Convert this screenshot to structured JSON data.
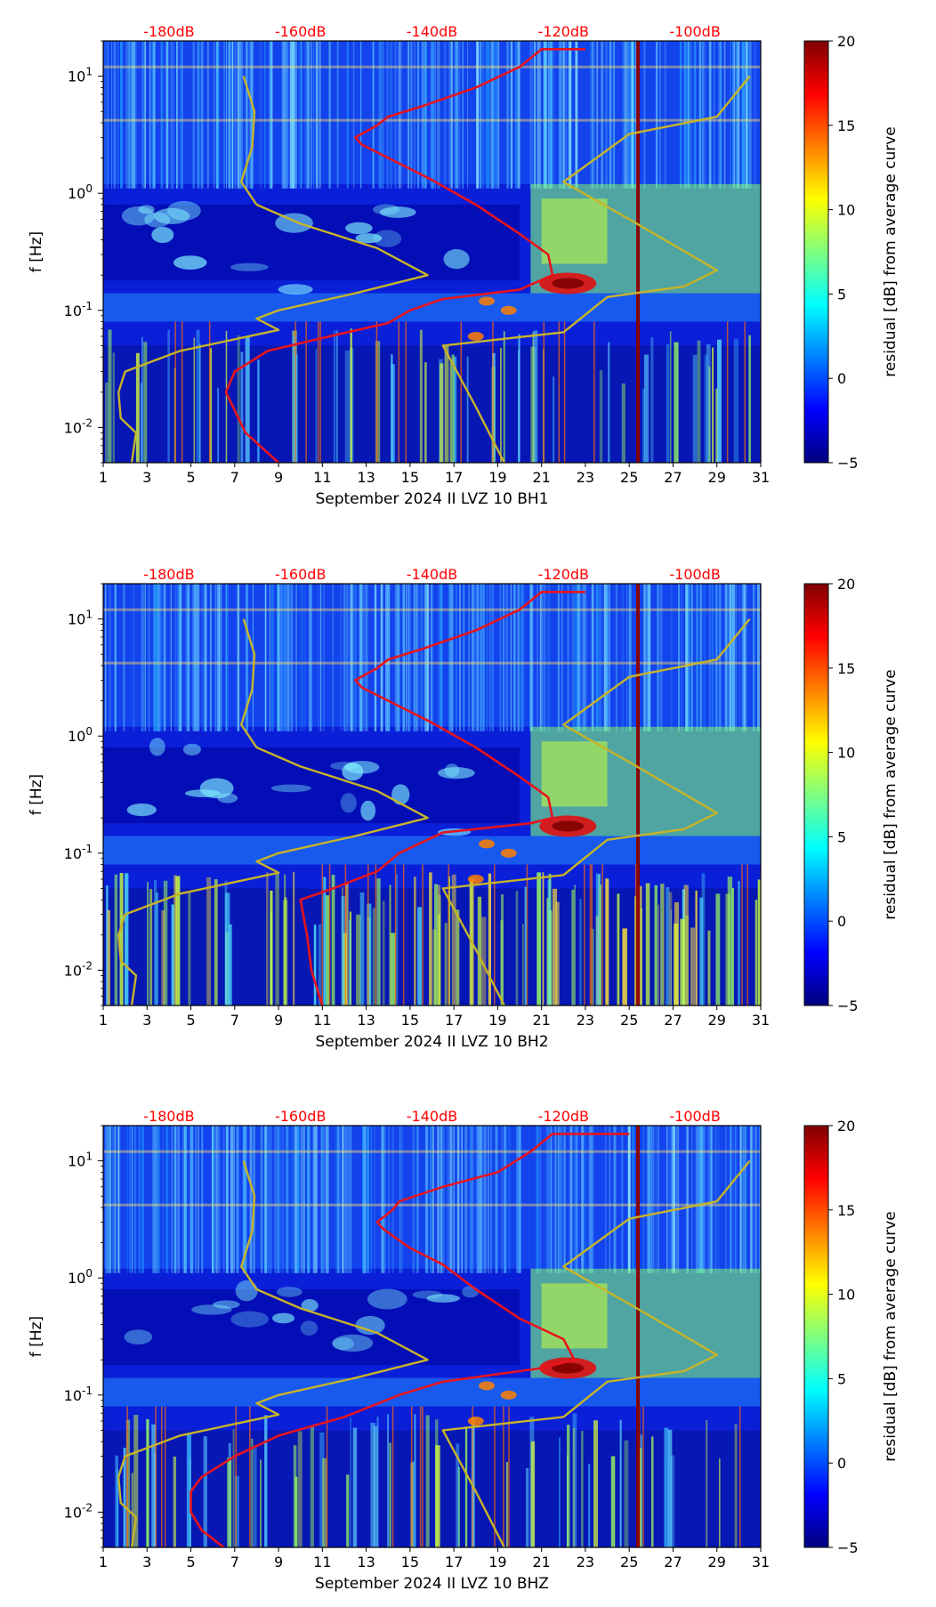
{
  "colormap": {
    "name": "jet",
    "stops": [
      "#00007f",
      "#0000ff",
      "#007fff",
      "#00ffff",
      "#7fff7f",
      "#ffff00",
      "#ff7f00",
      "#ff0000",
      "#7f0000"
    ]
  },
  "colors": {
    "psd_line": "#e8141c",
    "noise_model_line": "#c8b428",
    "db_label": "#ff0000"
  },
  "chart_data": [
    {
      "type": "heatmap",
      "xlabel": "September 2024 II LVZ 10 BH1",
      "ylabel": "f [Hz]",
      "colorbar_label": "residual [dB] from average curve",
      "colorbar_ticks": [
        "20",
        "15",
        "10",
        "5",
        "0",
        "−5"
      ],
      "colorbar_values": [
        20,
        15,
        10,
        5,
        0,
        -5
      ],
      "crange": [
        -5,
        20
      ],
      "xlim": [
        1,
        31
      ],
      "x_ticks": [
        1,
        3,
        5,
        7,
        9,
        11,
        13,
        15,
        17,
        19,
        21,
        23,
        25,
        27,
        29,
        31
      ],
      "x_tick_labels": [
        "1",
        "3",
        "5",
        "7",
        "9",
        "11",
        "13",
        "15",
        "17",
        "19",
        "21",
        "23",
        "25",
        "27",
        "29",
        "31"
      ],
      "yscale": "log",
      "ylim": [
        0.005,
        20
      ],
      "y_tick_labels": [
        "10^1",
        "10^0",
        "10^-1",
        "10^-2"
      ],
      "y_tick_values": [
        10,
        1,
        0.1,
        0.01
      ],
      "top_axis_labels": [
        "-180dB",
        "-160dB",
        "-140dB",
        "-120dB",
        "-100dB"
      ],
      "top_axis_positions": [
        4,
        10,
        16,
        22,
        28
      ],
      "series": [
        {
          "role": "psd_curve",
          "points": [
            [
              9,
              0.005
            ],
            [
              7.5,
              0.009
            ],
            [
              6.6,
              0.02
            ],
            [
              7,
              0.03
            ],
            [
              8.5,
              0.045
            ],
            [
              11,
              0.058
            ],
            [
              14,
              0.078
            ],
            [
              15,
              0.1
            ],
            [
              16.5,
              0.125
            ],
            [
              20,
              0.15
            ],
            [
              21.5,
              0.2
            ],
            [
              21.3,
              0.3
            ],
            [
              20,
              0.45
            ],
            [
              18,
              0.8
            ],
            [
              16,
              1.3
            ],
            [
              14.5,
              1.8
            ],
            [
              12.8,
              2.6
            ],
            [
              12.5,
              3
            ],
            [
              13.5,
              3.8
            ],
            [
              14,
              4.5
            ],
            [
              15.5,
              5.5
            ],
            [
              18,
              8
            ],
            [
              20,
              12
            ],
            [
              21,
              17
            ],
            [
              23,
              17
            ]
          ]
        },
        {
          "role": "noise_model",
          "points": [
            [
              2.3,
              0.005
            ],
            [
              2.5,
              0.009
            ],
            [
              1.8,
              0.012
            ],
            [
              1.7,
              0.02
            ],
            [
              2,
              0.03
            ],
            [
              4.5,
              0.045
            ],
            [
              8,
              0.062
            ],
            [
              9,
              0.068
            ],
            [
              8,
              0.085
            ],
            [
              9,
              0.1
            ],
            [
              12.5,
              0.14
            ],
            [
              15.8,
              0.2
            ],
            [
              13.5,
              0.34
            ],
            [
              10,
              0.55
            ],
            [
              8,
              0.8
            ],
            [
              7.3,
              1.25
            ],
            [
              7.8,
              2.5
            ],
            [
              7.9,
              5
            ],
            [
              7.4,
              10
            ]
          ]
        },
        {
          "role": "noise_model",
          "points": [
            [
              19.3,
              0.005
            ],
            [
              18,
              0.015
            ],
            [
              16.5,
              0.05
            ],
            [
              22,
              0.065
            ],
            [
              24,
              0.13
            ],
            [
              27.5,
              0.16
            ],
            [
              29,
              0.22
            ],
            [
              25,
              0.6
            ],
            [
              22,
              1.25
            ],
            [
              25,
              3.2
            ],
            [
              29,
              4.5
            ],
            [
              30.5,
              10
            ]
          ]
        }
      ]
    },
    {
      "type": "heatmap",
      "xlabel": "September 2024 II LVZ 10 BH2",
      "ylabel": "f [Hz]",
      "colorbar_label": "residual [dB] from average curve",
      "colorbar_ticks": [
        "20",
        "15",
        "10",
        "5",
        "0",
        "−5"
      ],
      "colorbar_values": [
        20,
        15,
        10,
        5,
        0,
        -5
      ],
      "crange": [
        -5,
        20
      ],
      "xlim": [
        1,
        31
      ],
      "x_ticks": [
        1,
        3,
        5,
        7,
        9,
        11,
        13,
        15,
        17,
        19,
        21,
        23,
        25,
        27,
        29,
        31
      ],
      "x_tick_labels": [
        "1",
        "3",
        "5",
        "7",
        "9",
        "11",
        "13",
        "15",
        "17",
        "19",
        "21",
        "23",
        "25",
        "27",
        "29",
        "31"
      ],
      "yscale": "log",
      "ylim": [
        0.005,
        20
      ],
      "y_tick_labels": [
        "10^1",
        "10^0",
        "10^-1",
        "10^-2"
      ],
      "y_tick_values": [
        10,
        1,
        0.1,
        0.01
      ],
      "top_axis_labels": [
        "-180dB",
        "-160dB",
        "-140dB",
        "-120dB",
        "-100dB"
      ],
      "top_axis_positions": [
        4,
        10,
        16,
        22,
        28
      ],
      "series": [
        {
          "role": "psd_curve",
          "points": [
            [
              11,
              0.005
            ],
            [
              10.5,
              0.01
            ],
            [
              10.3,
              0.02
            ],
            [
              10,
              0.04
            ],
            [
              11.5,
              0.05
            ],
            [
              13.5,
              0.07
            ],
            [
              14.5,
              0.1
            ],
            [
              16.5,
              0.15
            ],
            [
              20.5,
              0.18
            ],
            [
              21.5,
              0.2
            ],
            [
              21.3,
              0.3
            ],
            [
              20,
              0.45
            ],
            [
              18,
              0.8
            ],
            [
              16,
              1.3
            ],
            [
              14.5,
              1.8
            ],
            [
              12.8,
              2.6
            ],
            [
              12.5,
              3
            ],
            [
              13.5,
              3.8
            ],
            [
              14,
              4.5
            ],
            [
              15.5,
              5.5
            ],
            [
              18,
              8
            ],
            [
              20,
              12
            ],
            [
              21,
              17
            ],
            [
              23,
              17
            ]
          ]
        },
        {
          "role": "noise_model",
          "points": [
            [
              2.3,
              0.005
            ],
            [
              2.5,
              0.009
            ],
            [
              1.8,
              0.012
            ],
            [
              1.7,
              0.02
            ],
            [
              2,
              0.03
            ],
            [
              4.5,
              0.045
            ],
            [
              8,
              0.062
            ],
            [
              9,
              0.068
            ],
            [
              8,
              0.085
            ],
            [
              9,
              0.1
            ],
            [
              12.5,
              0.14
            ],
            [
              15.8,
              0.2
            ],
            [
              13.5,
              0.34
            ],
            [
              10,
              0.55
            ],
            [
              8,
              0.8
            ],
            [
              7.3,
              1.25
            ],
            [
              7.8,
              2.5
            ],
            [
              7.9,
              5
            ],
            [
              7.4,
              10
            ]
          ]
        },
        {
          "role": "noise_model",
          "points": [
            [
              19.3,
              0.005
            ],
            [
              18,
              0.015
            ],
            [
              16.5,
              0.05
            ],
            [
              22,
              0.065
            ],
            [
              24,
              0.13
            ],
            [
              27.5,
              0.16
            ],
            [
              29,
              0.22
            ],
            [
              25,
              0.6
            ],
            [
              22,
              1.25
            ],
            [
              25,
              3.2
            ],
            [
              29,
              4.5
            ],
            [
              30.5,
              10
            ]
          ]
        }
      ]
    },
    {
      "type": "heatmap",
      "xlabel": "September 2024 II LVZ 10 BHZ",
      "ylabel": "f [Hz]",
      "colorbar_label": "residual [dB] from average curve",
      "colorbar_ticks": [
        "20",
        "15",
        "10",
        "5",
        "0",
        "−5"
      ],
      "colorbar_values": [
        20,
        15,
        10,
        5,
        0,
        -5
      ],
      "crange": [
        -5,
        20
      ],
      "xlim": [
        1,
        31
      ],
      "x_ticks": [
        1,
        3,
        5,
        7,
        9,
        11,
        13,
        15,
        17,
        19,
        21,
        23,
        25,
        27,
        29,
        31
      ],
      "x_tick_labels": [
        "1",
        "3",
        "5",
        "7",
        "9",
        "11",
        "13",
        "15",
        "17",
        "19",
        "21",
        "23",
        "25",
        "27",
        "29",
        "31"
      ],
      "yscale": "log",
      "ylim": [
        0.005,
        20
      ],
      "y_tick_labels": [
        "10^1",
        "10^0",
        "10^-1",
        "10^-2"
      ],
      "y_tick_values": [
        10,
        1,
        0.1,
        0.01
      ],
      "top_axis_labels": [
        "-180dB",
        "-160dB",
        "-140dB",
        "-120dB",
        "-100dB"
      ],
      "top_axis_positions": [
        4,
        10,
        16,
        22,
        28
      ],
      "series": [
        {
          "role": "psd_curve",
          "points": [
            [
              6.5,
              0.005
            ],
            [
              5.5,
              0.007
            ],
            [
              5,
              0.01
            ],
            [
              5,
              0.015
            ],
            [
              5.5,
              0.02
            ],
            [
              7,
              0.03
            ],
            [
              9,
              0.045
            ],
            [
              12,
              0.065
            ],
            [
              14.5,
              0.1
            ],
            [
              16.5,
              0.13
            ],
            [
              21,
              0.17
            ],
            [
              22.5,
              0.2
            ],
            [
              22,
              0.3
            ],
            [
              20,
              0.45
            ],
            [
              18,
              0.8
            ],
            [
              16.5,
              1.3
            ],
            [
              15,
              1.8
            ],
            [
              13.8,
              2.6
            ],
            [
              13.5,
              3
            ],
            [
              14.2,
              3.8
            ],
            [
              14.5,
              4.5
            ],
            [
              16.5,
              6
            ],
            [
              19,
              8
            ],
            [
              20.5,
              12
            ],
            [
              21.5,
              17
            ],
            [
              25,
              17
            ]
          ]
        },
        {
          "role": "noise_model",
          "points": [
            [
              2.3,
              0.005
            ],
            [
              2.5,
              0.009
            ],
            [
              1.8,
              0.012
            ],
            [
              1.7,
              0.02
            ],
            [
              2,
              0.03
            ],
            [
              4.5,
              0.045
            ],
            [
              8,
              0.062
            ],
            [
              9,
              0.068
            ],
            [
              8,
              0.085
            ],
            [
              9,
              0.1
            ],
            [
              12.5,
              0.14
            ],
            [
              15.8,
              0.2
            ],
            [
              13.5,
              0.34
            ],
            [
              10,
              0.55
            ],
            [
              8,
              0.8
            ],
            [
              7.3,
              1.25
            ],
            [
              7.8,
              2.5
            ],
            [
              7.9,
              5
            ],
            [
              7.4,
              10
            ]
          ]
        },
        {
          "role": "noise_model",
          "points": [
            [
              19.3,
              0.005
            ],
            [
              18,
              0.015
            ],
            [
              16.5,
              0.05
            ],
            [
              22,
              0.065
            ],
            [
              24,
              0.13
            ],
            [
              27.5,
              0.16
            ],
            [
              29,
              0.22
            ],
            [
              25,
              0.6
            ],
            [
              22,
              1.25
            ],
            [
              25,
              3.2
            ],
            [
              29,
              4.5
            ],
            [
              30.5,
              10
            ]
          ]
        }
      ]
    }
  ]
}
